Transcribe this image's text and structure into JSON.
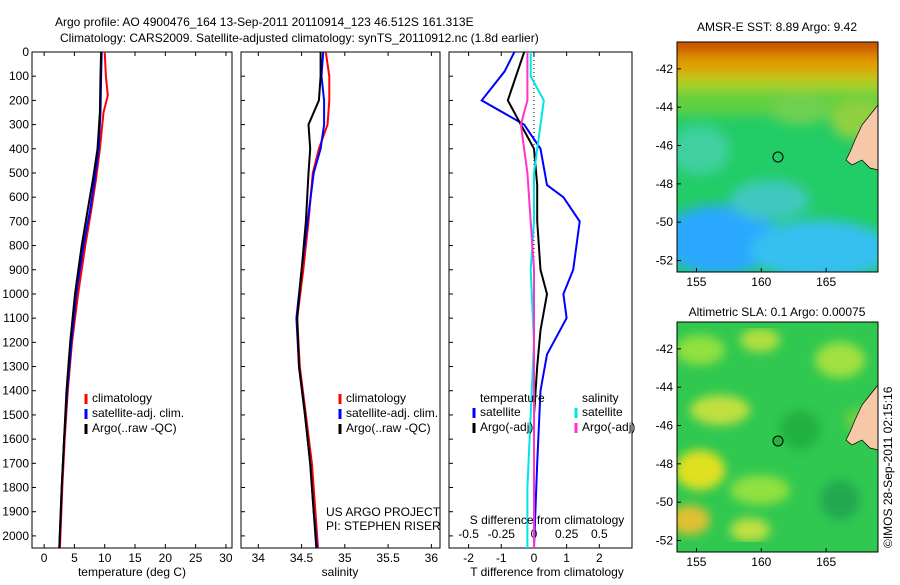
{
  "header": {
    "line1": "Argo profile: AO 4900476_164 13-Sep-2011 20110914_123 46.512S 161.313E",
    "line2": "Climatology: CARS2009. Satellite-adjusted climatology: synTS_20110912.nc (1.8d earlier)"
  },
  "colors": {
    "climatology": "#ff0000",
    "satellite": "#0000ff",
    "argo": "#000000",
    "sal_satellite": "#00e5e5",
    "sal_argo": "#ff33cc"
  },
  "chart_data": [
    {
      "type": "line",
      "id": "temperature",
      "xlabel": "temperature (deg C)",
      "ylabel": "",
      "xlim": [
        -2,
        31
      ],
      "ylim": [
        2050,
        0
      ],
      "xticks": [
        0,
        5,
        10,
        15,
        20,
        25,
        30
      ],
      "yticks": [
        0,
        100,
        200,
        300,
        400,
        500,
        600,
        700,
        800,
        900,
        1000,
        1100,
        1200,
        1300,
        1400,
        1500,
        1600,
        1700,
        1800,
        1900,
        2000
      ],
      "legend": [
        "climatology",
        "satellite-adj. clim.",
        "Argo(..raw -QC)"
      ],
      "series": [
        {
          "name": "climatology",
          "color": "#ff0000",
          "points": [
            [
              10,
              0
            ],
            [
              10.2,
              100
            ],
            [
              10.5,
              180
            ],
            [
              9.8,
              250
            ],
            [
              9.2,
              400
            ],
            [
              8.6,
              520
            ],
            [
              7.8,
              650
            ],
            [
              6.8,
              800
            ],
            [
              5.6,
              1000
            ],
            [
              4.6,
              1200
            ],
            [
              3.9,
              1400
            ],
            [
              3.4,
              1600
            ],
            [
              3,
              1800
            ],
            [
              2.6,
              2050
            ]
          ]
        },
        {
          "name": "satellite-adj. clim.",
          "color": "#0000ff",
          "points": [
            [
              9.5,
              0
            ],
            [
              9.4,
              100
            ],
            [
              9.3,
              250
            ],
            [
              9,
              400
            ],
            [
              8.4,
              520
            ],
            [
              7.6,
              650
            ],
            [
              6.5,
              800
            ],
            [
              5.3,
              1000
            ],
            [
              4.5,
              1200
            ],
            [
              3.8,
              1400
            ],
            [
              3.3,
              1600
            ],
            [
              2.9,
              1800
            ],
            [
              2.5,
              2050
            ]
          ]
        },
        {
          "name": "Argo(..raw -QC)",
          "color": "#000000",
          "points": [
            [
              9.4,
              0
            ],
            [
              9.3,
              100
            ],
            [
              9.2,
              250
            ],
            [
              8.8,
              400
            ],
            [
              8.1,
              520
            ],
            [
              7.2,
              650
            ],
            [
              6.2,
              800
            ],
            [
              5.1,
              1000
            ],
            [
              4.3,
              1200
            ],
            [
              3.7,
              1400
            ],
            [
              3.3,
              1600
            ],
            [
              2.9,
              1800
            ],
            [
              2.5,
              2050
            ]
          ]
        }
      ]
    },
    {
      "type": "line",
      "id": "salinity",
      "xlabel": "salinity",
      "ylabel": "",
      "xlim": [
        33.8,
        36.1
      ],
      "ylim": [
        2050,
        0
      ],
      "xticks": [
        34,
        34.5,
        35,
        35.5,
        36
      ],
      "legend": [
        "climatology",
        "satellite-adj. clim.",
        "Argo(..raw -QC)"
      ],
      "annotation": [
        "US ARGO PROJECT",
        "PI: STEPHEN RISER"
      ],
      "series": [
        {
          "name": "climatology",
          "color": "#ff0000",
          "points": [
            [
              34.78,
              0
            ],
            [
              34.82,
              100
            ],
            [
              34.82,
              200
            ],
            [
              34.8,
              300
            ],
            [
              34.7,
              400
            ],
            [
              34.63,
              500
            ],
            [
              34.58,
              700
            ],
            [
              34.52,
              900
            ],
            [
              34.45,
              1100
            ],
            [
              34.48,
              1300
            ],
            [
              34.55,
              1500
            ],
            [
              34.62,
              1700
            ],
            [
              34.66,
              1900
            ],
            [
              34.69,
              2050
            ]
          ]
        },
        {
          "name": "satellite-adj. clim.",
          "color": "#0000ff",
          "points": [
            [
              34.75,
              0
            ],
            [
              34.73,
              100
            ],
            [
              34.76,
              200
            ],
            [
              34.76,
              300
            ],
            [
              34.72,
              400
            ],
            [
              34.64,
              500
            ],
            [
              34.57,
              700
            ],
            [
              34.5,
              900
            ],
            [
              34.44,
              1100
            ],
            [
              34.47,
              1300
            ],
            [
              34.54,
              1500
            ],
            [
              34.6,
              1700
            ],
            [
              34.64,
              1900
            ],
            [
              34.68,
              2050
            ]
          ]
        },
        {
          "name": "Argo(..raw -QC)",
          "color": "#000000",
          "points": [
            [
              34.72,
              0
            ],
            [
              34.72,
              100
            ],
            [
              34.7,
              200
            ],
            [
              34.58,
              300
            ],
            [
              34.6,
              400
            ],
            [
              34.58,
              500
            ],
            [
              34.55,
              700
            ],
            [
              34.5,
              900
            ],
            [
              34.45,
              1100
            ],
            [
              34.47,
              1300
            ],
            [
              34.54,
              1500
            ],
            [
              34.6,
              1700
            ],
            [
              34.64,
              1900
            ],
            [
              34.67,
              2050
            ]
          ]
        }
      ]
    },
    {
      "type": "line",
      "id": "differences",
      "xlabel": "T difference from climatology",
      "xlabel2": "S difference from climatology",
      "ylabel": "",
      "xlim": [
        -2.6,
        3
      ],
      "ylim": [
        2050,
        0
      ],
      "xticks": [
        -2,
        -1,
        0,
        1,
        2
      ],
      "xticks_top_labels": [
        "-0.5",
        "-0.25",
        "0",
        "0.25",
        "0.5"
      ],
      "legend_temperature": {
        "heading": "temperature",
        "items": [
          "satellite",
          "Argo(-adj)"
        ]
      },
      "legend_salinity": {
        "heading": "salinity",
        "items": [
          "satellite",
          "Argo(-adj)"
        ]
      },
      "series": [
        {
          "name": "T satellite",
          "color": "#0000ff",
          "points": [
            [
              -0.6,
              0
            ],
            [
              -0.9,
              80
            ],
            [
              -1.6,
              200
            ],
            [
              -0.3,
              300
            ],
            [
              0.2,
              400
            ],
            [
              0.4,
              550
            ],
            [
              0.9,
              600
            ],
            [
              1.4,
              700
            ],
            [
              1.2,
              900
            ],
            [
              0.9,
              1000
            ],
            [
              1,
              1100
            ],
            [
              0.4,
              1250
            ],
            [
              0.2,
              1400
            ],
            [
              0.1,
              1700
            ],
            [
              0,
              2050
            ]
          ]
        },
        {
          "name": "T Argo(-adj)",
          "color": "#000000",
          "points": [
            [
              -0.3,
              0
            ],
            [
              -0.5,
              80
            ],
            [
              -0.8,
              200
            ],
            [
              -0.4,
              300
            ],
            [
              0,
              400
            ],
            [
              0.1,
              550
            ],
            [
              0.1,
              700
            ],
            [
              0.2,
              900
            ],
            [
              0.4,
              1000
            ],
            [
              0.2,
              1150
            ],
            [
              0.1,
              1300
            ],
            [
              0,
              1500
            ],
            [
              0,
              1800
            ],
            [
              0,
              2050
            ]
          ]
        },
        {
          "name": "S satellite",
          "color": "#00e5e5",
          "points": [
            [
              -0.1,
              0
            ],
            [
              -0.1,
              100
            ],
            [
              0.3,
              200
            ],
            [
              0.2,
              300
            ],
            [
              0,
              500
            ],
            [
              0,
              700
            ],
            [
              -0.1,
              900
            ],
            [
              0,
              1200
            ],
            [
              -0.1,
              1500
            ],
            [
              -0.2,
              1800
            ],
            [
              -0.2,
              2050
            ]
          ]
        },
        {
          "name": "S Argo(-adj)",
          "color": "#ff33cc",
          "points": [
            [
              -0.2,
              0
            ],
            [
              -0.2,
              100
            ],
            [
              -0.2,
              200
            ],
            [
              -0.4,
              300
            ],
            [
              -0.2,
              500
            ],
            [
              -0.1,
              700
            ],
            [
              0,
              900
            ],
            [
              0,
              1200
            ],
            [
              0,
              1500
            ],
            [
              0,
              1800
            ],
            [
              0,
              2050
            ]
          ]
        }
      ]
    },
    {
      "type": "heatmap",
      "id": "sst_map",
      "title": "AMSR-E SST: 8.89  Argo: 9.42",
      "xticks": [
        155,
        160,
        165
      ],
      "yticks": [
        -42,
        -44,
        -46,
        -48,
        -50,
        -52
      ],
      "xlim": [
        153.5,
        169
      ],
      "ylim": [
        -52.6,
        -40.6
      ],
      "marker": [
        161.3,
        -46.5
      ]
    },
    {
      "type": "heatmap",
      "id": "sla_map",
      "title": "Altimetric SLA: 0.1  Argo: 0.00075",
      "xticks": [
        155,
        160,
        165
      ],
      "yticks": [
        -42,
        -44,
        -46,
        -48,
        -50,
        -52
      ],
      "xlim": [
        153.5,
        169
      ],
      "ylim": [
        -52.6,
        -40.6
      ],
      "marker": [
        161.3,
        -46.5
      ]
    }
  ],
  "credit": "©IMOS 28-Sep-2011 02:15:16"
}
